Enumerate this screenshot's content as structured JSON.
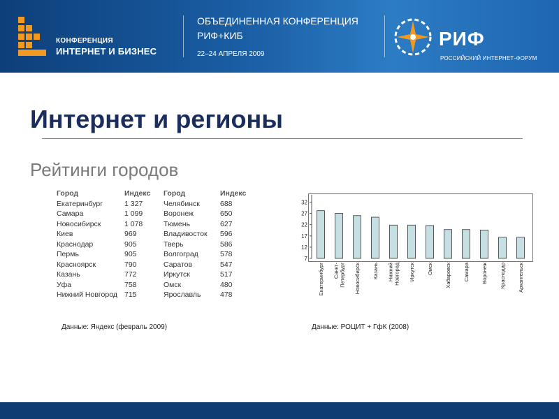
{
  "header": {
    "logo_line1": "КОНФЕРЕНЦИЯ",
    "logo_line2": "ИНТЕРНЕТ И БИЗНЕС",
    "conf_title": "ОБЪЕДИНЕННАЯ КОНФЕРЕНЦИЯ",
    "conf_sub": "РИФ+КИБ",
    "conf_date": "22–24 АПРЕЛЯ 2009",
    "rif_brand": "РИФ",
    "rif_sub": "РОССИЙСКИЙ ИНТЕРНЕТ-ФОРУМ",
    "colors": {
      "banner": "#1b5fa6",
      "logo_accent": "#f19a1f"
    }
  },
  "slide": {
    "title": "Интернет и регионы",
    "subtitle": "Рейтинги городов"
  },
  "table": {
    "headers": [
      "Город",
      "Индекс",
      "Город",
      "Индекс"
    ],
    "left": [
      {
        "city": "Екатеринбург",
        "index": "1 327"
      },
      {
        "city": "Самара",
        "index": "1 099"
      },
      {
        "city": "Новосибирск",
        "index": "1 078"
      },
      {
        "city": "Киев",
        "index": "969"
      },
      {
        "city": "Краснодар",
        "index": "905"
      },
      {
        "city": "Пермь",
        "index": "905"
      },
      {
        "city": "Красноярск",
        "index": "790"
      },
      {
        "city": "Казань",
        "index": "772"
      },
      {
        "city": "Уфа",
        "index": "758"
      },
      {
        "city": "Нижний Новгород",
        "index": "715"
      }
    ],
    "right": [
      {
        "city": "Челябинск",
        "index": "688"
      },
      {
        "city": "Воронеж",
        "index": "650"
      },
      {
        "city": "Тюмень",
        "index": "627"
      },
      {
        "city": "Владивосток",
        "index": "596"
      },
      {
        "city": "Тверь",
        "index": "586"
      },
      {
        "city": "Волгоград",
        "index": "578"
      },
      {
        "city": "Саратов",
        "index": "547"
      },
      {
        "city": "Иркутск",
        "index": "517"
      },
      {
        "city": "Омск",
        "index": "480"
      },
      {
        "city": "Ярославль",
        "index": "478"
      }
    ]
  },
  "chart_data": {
    "type": "bar",
    "title": "",
    "xlabel": "",
    "ylabel": "",
    "categories": [
      "Екатеринбург",
      "Санкт-Петербург",
      "Новосибирск",
      "Казань",
      "Нижний Новгород",
      "Иркутск",
      "Омск",
      "Хабаровск",
      "Самара",
      "Воронеж",
      "Краснодар",
      "Архангельск"
    ],
    "category_lines": [
      [
        "Екатеринбург"
      ],
      [
        "Санкт-",
        "Петербург"
      ],
      [
        "Новосибирск"
      ],
      [
        "Казань"
      ],
      [
        "Нижний",
        "Новгород"
      ],
      [
        "Иркутск"
      ],
      [
        "Омск"
      ],
      [
        "Хабаровск"
      ],
      [
        "Самара"
      ],
      [
        "Воронеж"
      ],
      [
        "Краснодар"
      ],
      [
        "Архангельск"
      ]
    ],
    "values": [
      28.2,
      27.0,
      26.0,
      25.3,
      21.8,
      21.8,
      21.6,
      19.8,
      19.8,
      19.6,
      16.4,
      16.4
    ],
    "yticks": [
      7,
      12,
      17,
      22,
      27,
      32
    ],
    "ylim": [
      7,
      34
    ],
    "grid": false,
    "bar_color": "#c5dfe3"
  },
  "notes": {
    "left": "Данные: Яндекс (февраль 2009)",
    "right": "Данные: РОЦИТ + ГфК (2008)"
  }
}
